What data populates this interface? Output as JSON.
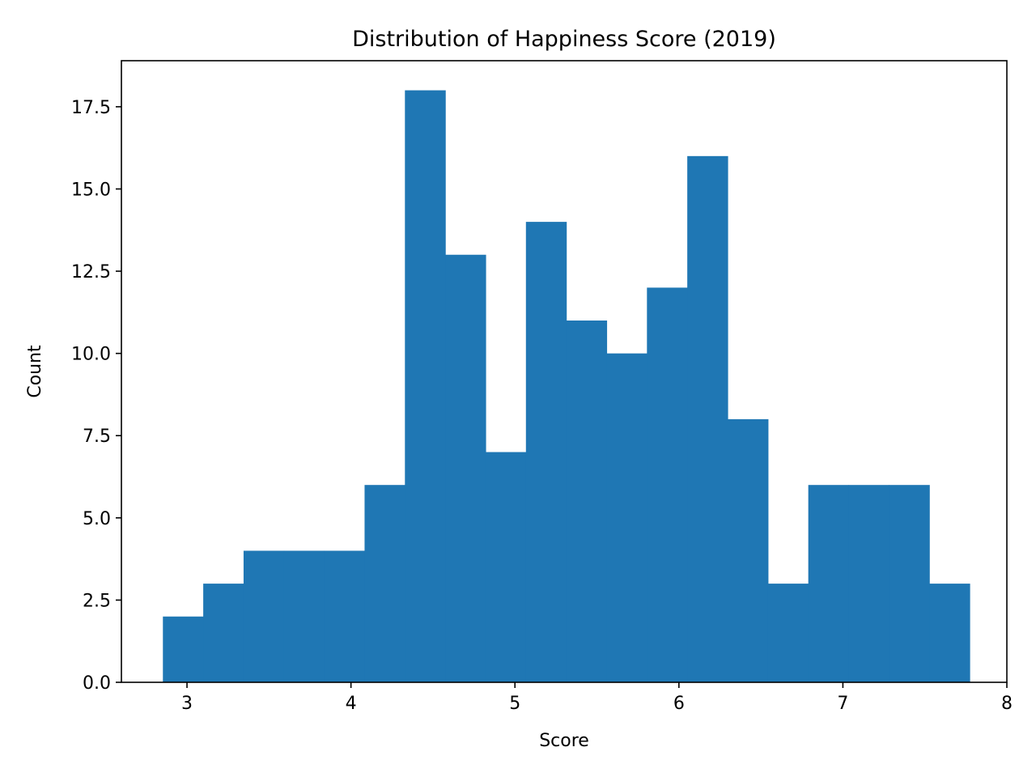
{
  "chart_data": {
    "type": "bar",
    "subtype": "histogram",
    "title": "Distribution of Happiness Score (2019)",
    "xlabel": "Score",
    "ylabel": "Count",
    "xlim": [
      2.6,
      8.0
    ],
    "ylim": [
      0,
      18.9
    ],
    "xticks": [
      3,
      4,
      5,
      6,
      7,
      8
    ],
    "yticks": [
      0.0,
      2.5,
      5.0,
      7.5,
      10.0,
      12.5,
      15.0,
      17.5
    ],
    "xtick_labels": [
      "3",
      "4",
      "5",
      "6",
      "7",
      "8"
    ],
    "ytick_labels": [
      "0.0",
      "2.5",
      "5.0",
      "7.5",
      "10.0",
      "12.5",
      "15.0",
      "17.5"
    ],
    "bin_edges": [
      2.853,
      3.099,
      3.345,
      3.591,
      3.837,
      4.083,
      4.329,
      4.575,
      4.821,
      5.067,
      5.313,
      5.559,
      5.805,
      6.051,
      6.297,
      6.543,
      6.789,
      7.035,
      7.281,
      7.527,
      7.773
    ],
    "values": [
      2,
      3,
      4,
      4,
      4,
      6,
      18,
      13,
      7,
      14,
      11,
      10,
      12,
      16,
      8,
      3,
      6,
      6,
      6,
      3
    ],
    "bar_color": "#1f77b4",
    "grid": false,
    "legend": false
  }
}
